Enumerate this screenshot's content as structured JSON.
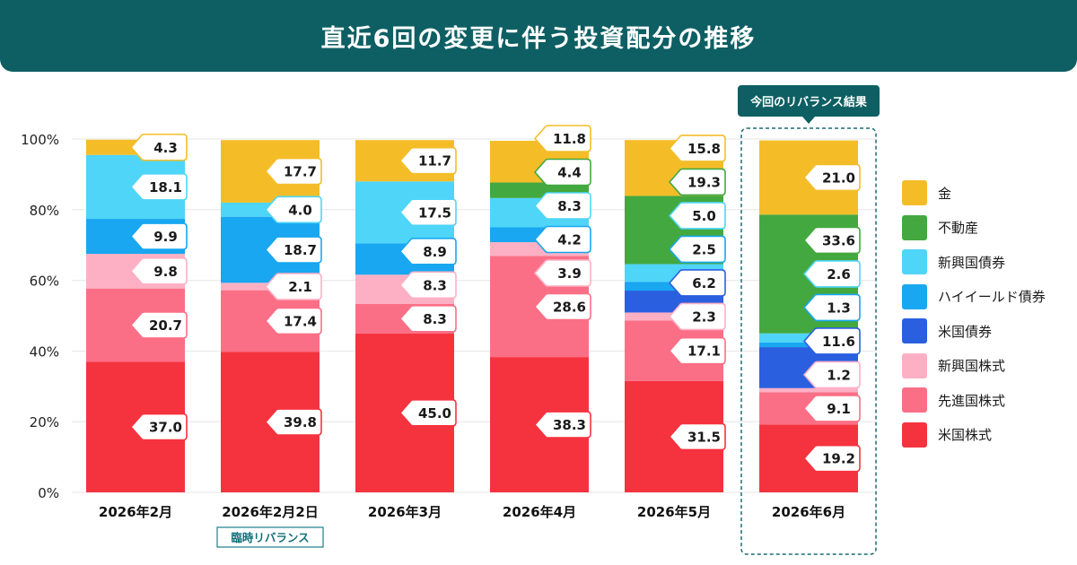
{
  "title": "直近6回の変更に伴う投資配分の推移",
  "callout": "今回のリバランス結果",
  "subnote": "臨時リバランス",
  "chart_data": {
    "type": "bar",
    "stacked": true,
    "categories": [
      "2026年2月",
      "2026年2月2日",
      "2026年3月",
      "2026年4月",
      "2026年5月",
      "2026年6月"
    ],
    "y_ticks": [
      "0%",
      "20%",
      "40%",
      "60%",
      "80%",
      "100%"
    ],
    "ylim": [
      0,
      100
    ],
    "grid": true,
    "legend_position": "right",
    "highlight_category": "2026年6月",
    "subnote_category": "2026年2月2日",
    "series": [
      {
        "name": "米国株式",
        "color": "#f5333f",
        "values": [
          37.0,
          39.8,
          45.0,
          38.3,
          31.5,
          19.2
        ]
      },
      {
        "name": "先進国株式",
        "color": "#fb6f86",
        "values": [
          20.7,
          17.4,
          8.3,
          28.6,
          17.1,
          9.1
        ]
      },
      {
        "name": "新興国株式",
        "color": "#fdb0c4",
        "values": [
          9.8,
          2.1,
          8.3,
          3.9,
          2.3,
          1.2
        ]
      },
      {
        "name": "米国債券",
        "color": "#2a5fe0",
        "values": [
          0,
          0,
          0,
          0,
          6.2,
          11.6
        ]
      },
      {
        "name": "ハイイールド債券",
        "color": "#18a7f0",
        "values": [
          9.9,
          18.7,
          8.9,
          4.2,
          2.5,
          1.3
        ]
      },
      {
        "name": "新興国債券",
        "color": "#4fd5f7",
        "values": [
          18.1,
          4.0,
          17.5,
          8.3,
          5.0,
          2.6
        ]
      },
      {
        "name": "不動産",
        "color": "#43a83f",
        "values": [
          0,
          0,
          0,
          4.4,
          19.3,
          33.6
        ]
      },
      {
        "name": "金",
        "color": "#f4bd28",
        "values": [
          4.3,
          17.7,
          11.7,
          11.8,
          15.8,
          21.0
        ]
      }
    ],
    "legend_order": [
      "金",
      "不動産",
      "新興国債券",
      "ハイイールド債券",
      "米国債券",
      "新興国株式",
      "先進国株式",
      "米国株式"
    ]
  }
}
